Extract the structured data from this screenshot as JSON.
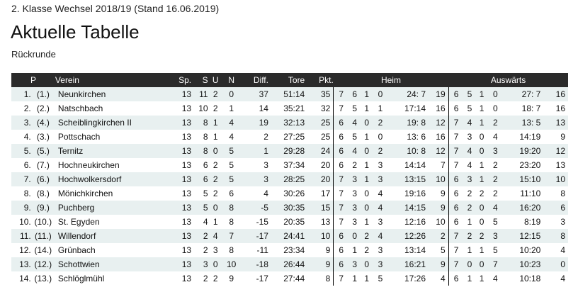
{
  "header": {
    "subtitle": "2. Klasse Wechsel 2018/19 (Stand 16.06.2019)",
    "title": "Aktuelle Tabelle",
    "round": "Rückrunde"
  },
  "columns": {
    "p": "P",
    "club": "Verein",
    "games": "Sp.",
    "w": "S",
    "d": "U",
    "l": "N",
    "diff": "Diff.",
    "goals": "Tore",
    "pts": "Pkt.",
    "home": "Heim",
    "away": "Auswärts"
  },
  "rows": [
    {
      "pos": "1.",
      "prev": "(1.)",
      "club": "Neunkirchen",
      "sp": "13",
      "s": "11",
      "u": "2",
      "n": "0",
      "diff": "37",
      "tore": "51:14",
      "pkt": "35",
      "home": {
        "sp": "7",
        "s": "6",
        "u": "1",
        "n": "0",
        "tore": "24: 7",
        "pkt": "19"
      },
      "away": {
        "sp": "6",
        "s": "5",
        "u": "1",
        "n": "0",
        "tore": "27: 7",
        "pkt": "16"
      }
    },
    {
      "pos": "2.",
      "prev": "(2.)",
      "club": "Natschbach",
      "sp": "13",
      "s": "10",
      "u": "2",
      "n": "1",
      "diff": "14",
      "tore": "35:21",
      "pkt": "32",
      "home": {
        "sp": "7",
        "s": "5",
        "u": "1",
        "n": "1",
        "tore": "17:14",
        "pkt": "16"
      },
      "away": {
        "sp": "6",
        "s": "5",
        "u": "1",
        "n": "0",
        "tore": "18: 7",
        "pkt": "16"
      }
    },
    {
      "pos": "3.",
      "prev": "(4.)",
      "club": "Scheiblingkirchen II",
      "sp": "13",
      "s": "8",
      "u": "1",
      "n": "4",
      "diff": "19",
      "tore": "32:13",
      "pkt": "25",
      "home": {
        "sp": "6",
        "s": "4",
        "u": "0",
        "n": "2",
        "tore": "19: 8",
        "pkt": "12"
      },
      "away": {
        "sp": "7",
        "s": "4",
        "u": "1",
        "n": "2",
        "tore": "13: 5",
        "pkt": "13"
      }
    },
    {
      "pos": "4.",
      "prev": "(3.)",
      "club": "Pottschach",
      "sp": "13",
      "s": "8",
      "u": "1",
      "n": "4",
      "diff": "2",
      "tore": "27:25",
      "pkt": "25",
      "home": {
        "sp": "6",
        "s": "5",
        "u": "1",
        "n": "0",
        "tore": "13: 6",
        "pkt": "16"
      },
      "away": {
        "sp": "7",
        "s": "3",
        "u": "0",
        "n": "4",
        "tore": "14:19",
        "pkt": "9"
      }
    },
    {
      "pos": "5.",
      "prev": "(5.)",
      "club": "Ternitz",
      "sp": "13",
      "s": "8",
      "u": "0",
      "n": "5",
      "diff": "1",
      "tore": "29:28",
      "pkt": "24",
      "home": {
        "sp": "6",
        "s": "4",
        "u": "0",
        "n": "2",
        "tore": "10: 8",
        "pkt": "12"
      },
      "away": {
        "sp": "7",
        "s": "4",
        "u": "0",
        "n": "3",
        "tore": "19:20",
        "pkt": "12"
      }
    },
    {
      "pos": "6.",
      "prev": "(7.)",
      "club": "Hochneukirchen",
      "sp": "13",
      "s": "6",
      "u": "2",
      "n": "5",
      "diff": "3",
      "tore": "37:34",
      "pkt": "20",
      "home": {
        "sp": "6",
        "s": "2",
        "u": "1",
        "n": "3",
        "tore": "14:14",
        "pkt": "7"
      },
      "away": {
        "sp": "7",
        "s": "4",
        "u": "1",
        "n": "2",
        "tore": "23:20",
        "pkt": "13"
      }
    },
    {
      "pos": "7.",
      "prev": "(6.)",
      "club": "Hochwolkersdorf",
      "sp": "13",
      "s": "6",
      "u": "2",
      "n": "5",
      "diff": "3",
      "tore": "28:25",
      "pkt": "20",
      "home": {
        "sp": "7",
        "s": "3",
        "u": "1",
        "n": "3",
        "tore": "13:15",
        "pkt": "10"
      },
      "away": {
        "sp": "6",
        "s": "3",
        "u": "1",
        "n": "2",
        "tore": "15:10",
        "pkt": "10"
      }
    },
    {
      "pos": "8.",
      "prev": "(8.)",
      "club": "Mönichkirchen",
      "sp": "13",
      "s": "5",
      "u": "2",
      "n": "6",
      "diff": "4",
      "tore": "30:26",
      "pkt": "17",
      "home": {
        "sp": "7",
        "s": "3",
        "u": "0",
        "n": "4",
        "tore": "19:16",
        "pkt": "9"
      },
      "away": {
        "sp": "6",
        "s": "2",
        "u": "2",
        "n": "2",
        "tore": "11:10",
        "pkt": "8"
      }
    },
    {
      "pos": "9.",
      "prev": "(9.)",
      "club": "Puchberg",
      "sp": "13",
      "s": "5",
      "u": "0",
      "n": "8",
      "diff": "-5",
      "tore": "30:35",
      "pkt": "15",
      "home": {
        "sp": "7",
        "s": "3",
        "u": "0",
        "n": "4",
        "tore": "14:15",
        "pkt": "9"
      },
      "away": {
        "sp": "6",
        "s": "2",
        "u": "0",
        "n": "4",
        "tore": "16:20",
        "pkt": "6"
      }
    },
    {
      "pos": "10.",
      "prev": "(10.)",
      "club": "St. Egyden",
      "sp": "13",
      "s": "4",
      "u": "1",
      "n": "8",
      "diff": "-15",
      "tore": "20:35",
      "pkt": "13",
      "home": {
        "sp": "7",
        "s": "3",
        "u": "1",
        "n": "3",
        "tore": "12:16",
        "pkt": "10"
      },
      "away": {
        "sp": "6",
        "s": "1",
        "u": "0",
        "n": "5",
        "tore": "8:19",
        "pkt": "3"
      }
    },
    {
      "pos": "11.",
      "prev": "(11.)",
      "club": "Willendorf",
      "sp": "13",
      "s": "2",
      "u": "4",
      "n": "7",
      "diff": "-17",
      "tore": "24:41",
      "pkt": "10",
      "home": {
        "sp": "6",
        "s": "0",
        "u": "2",
        "n": "4",
        "tore": "12:26",
        "pkt": "2"
      },
      "away": {
        "sp": "7",
        "s": "2",
        "u": "2",
        "n": "3",
        "tore": "12:15",
        "pkt": "8"
      }
    },
    {
      "pos": "12.",
      "prev": "(14.)",
      "club": "Grünbach",
      "sp": "13",
      "s": "2",
      "u": "3",
      "n": "8",
      "diff": "-11",
      "tore": "23:34",
      "pkt": "9",
      "home": {
        "sp": "6",
        "s": "1",
        "u": "2",
        "n": "3",
        "tore": "13:14",
        "pkt": "5"
      },
      "away": {
        "sp": "7",
        "s": "1",
        "u": "1",
        "n": "5",
        "tore": "10:20",
        "pkt": "4"
      }
    },
    {
      "pos": "13.",
      "prev": "(12.)",
      "club": "Schottwien",
      "sp": "13",
      "s": "3",
      "u": "0",
      "n": "10",
      "diff": "-18",
      "tore": "26:44",
      "pkt": "9",
      "home": {
        "sp": "6",
        "s": "3",
        "u": "0",
        "n": "3",
        "tore": "16:21",
        "pkt": "9"
      },
      "away": {
        "sp": "7",
        "s": "0",
        "u": "0",
        "n": "7",
        "tore": "10:23",
        "pkt": "0"
      }
    },
    {
      "pos": "14.",
      "prev": "(13.)",
      "club": "Schlöglmühl",
      "sp": "13",
      "s": "2",
      "u": "2",
      "n": "9",
      "diff": "-17",
      "tore": "27:44",
      "pkt": "8",
      "home": {
        "sp": "7",
        "s": "1",
        "u": "1",
        "n": "5",
        "tore": "17:26",
        "pkt": "4"
      },
      "away": {
        "sp": "6",
        "s": "1",
        "u": "1",
        "n": "4",
        "tore": "10:18",
        "pkt": "4"
      }
    }
  ]
}
